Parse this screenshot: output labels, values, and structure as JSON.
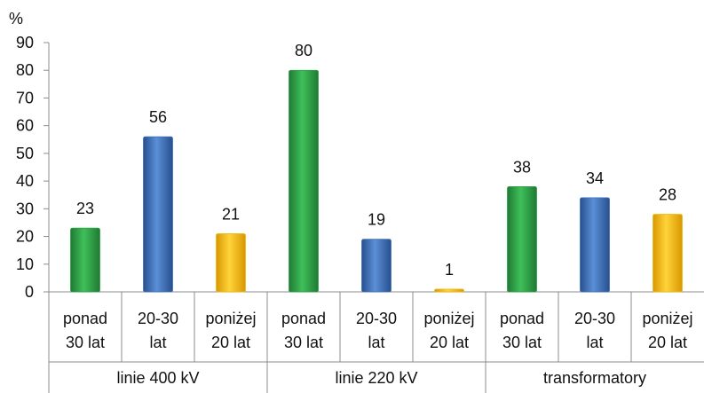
{
  "chart_data": {
    "type": "bar",
    "ylabel": "%",
    "ylim": [
      0,
      90
    ],
    "yticks": [
      0,
      10,
      20,
      30,
      40,
      50,
      60,
      70,
      80,
      90
    ],
    "grid": false,
    "legend": "none",
    "groups": [
      {
        "label": "linie 400 kV",
        "bars": [
          {
            "label": [
              "ponad",
              "30 lat"
            ],
            "value": 23,
            "color": "#2e9e45"
          },
          {
            "label": [
              "20-30",
              "lat"
            ],
            "value": 56,
            "color": "#3d6fb8"
          },
          {
            "label": [
              "poniżej",
              "20 lat"
            ],
            "value": 21,
            "color": "#f2b80f"
          }
        ]
      },
      {
        "label": "linie 220 kV",
        "bars": [
          {
            "label": [
              "ponad",
              "30 lat"
            ],
            "value": 80,
            "color": "#2e9e45"
          },
          {
            "label": [
              "20-30",
              "lat"
            ],
            "value": 19,
            "color": "#3d6fb8"
          },
          {
            "label": [
              "poniżej",
              "20 lat"
            ],
            "value": 1,
            "color": "#f2b80f"
          }
        ]
      },
      {
        "label": "transformatory",
        "bars": [
          {
            "label": [
              "ponad",
              "30 lat"
            ],
            "value": 38,
            "color": "#2e9e45"
          },
          {
            "label": [
              "20-30",
              "lat"
            ],
            "value": 34,
            "color": "#3d6fb8"
          },
          {
            "label": [
              "poniżej",
              "20 lat"
            ],
            "value": 28,
            "color": "#f2b80f"
          }
        ]
      }
    ]
  }
}
